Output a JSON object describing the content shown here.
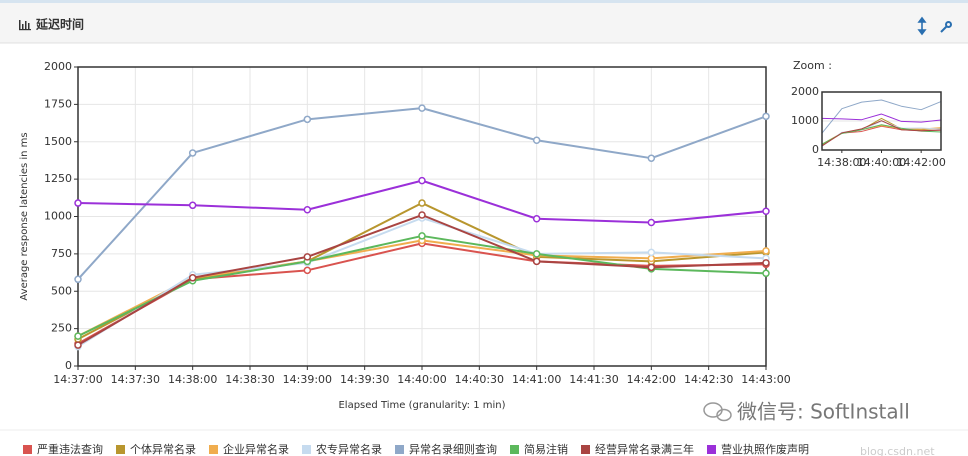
{
  "header": {
    "title": "延迟时间"
  },
  "chart_data": {
    "type": "line",
    "ylabel": "Average response latencies in ms",
    "xlabel": "Elapsed Time (granularity: 1 min)",
    "xticks": [
      "14:37:00",
      "14:37:30",
      "14:38:00",
      "14:38:30",
      "14:39:00",
      "14:39:30",
      "14:40:00",
      "14:40:30",
      "14:41:00",
      "14:41:30",
      "14:42:00",
      "14:42:30",
      "14:43:00"
    ],
    "x": [
      "14:37:00",
      "14:38:00",
      "14:39:00",
      "14:40:00",
      "14:41:00",
      "14:42:00",
      "14:43:00"
    ],
    "ylim": [
      0,
      2000
    ],
    "yticks": [
      0,
      250,
      500,
      750,
      1000,
      1250,
      1500,
      1750,
      2000
    ],
    "grid": true,
    "series": [
      {
        "name": "严重违法查询",
        "color": "#d9534f",
        "values": [
          150,
          580,
          640,
          820,
          700,
          670,
          680
        ]
      },
      {
        "name": "个体异常名录",
        "color": "#b8962e",
        "values": [
          180,
          580,
          700,
          1090,
          730,
          700,
          760
        ]
      },
      {
        "name": "企业异常名录",
        "color": "#f0ad4e",
        "values": [
          200,
          590,
          700,
          840,
          740,
          720,
          770
        ]
      },
      {
        "name": "农专异常名录",
        "color": "#c6dbef",
        "values": [
          130,
          610,
          690,
          990,
          750,
          760,
          720
        ]
      },
      {
        "name": "异常名录细则查询",
        "color": "#8fa8c8",
        "values": [
          580,
          1425,
          1650,
          1725,
          1510,
          1390,
          1670
        ]
      },
      {
        "name": "简易注销",
        "color": "#5cb85c",
        "values": [
          200,
          570,
          700,
          870,
          750,
          650,
          620
        ]
      },
      {
        "name": "经营异常名录满三年",
        "color": "#a94442",
        "values": [
          140,
          590,
          730,
          1010,
          700,
          660,
          690
        ]
      },
      {
        "name": "营业执照作废声明",
        "color": "#9b30d9",
        "values": [
          1090,
          1075,
          1045,
          1240,
          985,
          960,
          1035
        ]
      }
    ],
    "zoom": {
      "label": "Zoom :",
      "ylim": [
        0,
        2000
      ],
      "yticks": [
        0,
        1000,
        2000
      ],
      "xticks": [
        "14:38:00",
        "14:40:00",
        "14:42:00"
      ]
    }
  },
  "watermark": [
    "微信号: SoftInstall",
    "blog.csdn.net"
  ]
}
